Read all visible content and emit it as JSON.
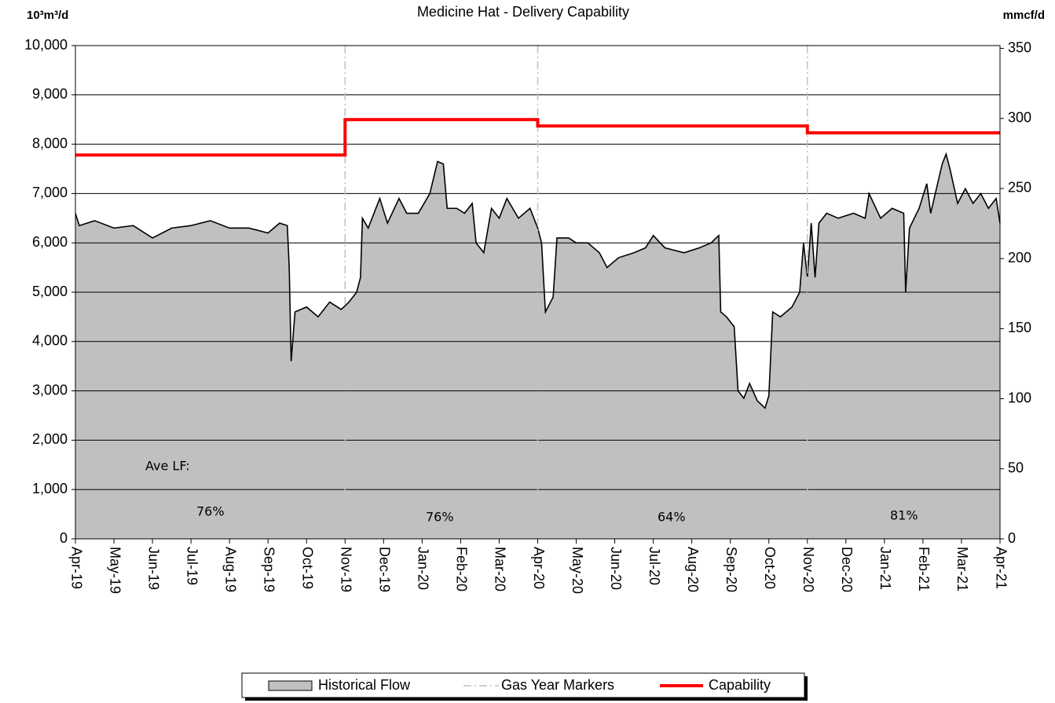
{
  "chart_data": {
    "type": "line",
    "title": "Medicine Hat - Delivery Capability",
    "y_label": "10³m³/d",
    "y2_label": "mmcf/d",
    "xlim": [
      0,
      24
    ],
    "xticks": [
      {
        "value": 0,
        "label": "Apr-19"
      },
      {
        "value": 1,
        "label": "May-19"
      },
      {
        "value": 2,
        "label": "Jun-19"
      },
      {
        "value": 3,
        "label": "Jul-19"
      },
      {
        "value": 4,
        "label": "Aug-19"
      },
      {
        "value": 5,
        "label": "Sep-19"
      },
      {
        "value": 6,
        "label": "Oct-19"
      },
      {
        "value": 7,
        "label": "Nov-19"
      },
      {
        "value": 8,
        "label": "Dec-19"
      },
      {
        "value": 9,
        "label": "Jan-20"
      },
      {
        "value": 10,
        "label": "Feb-20"
      },
      {
        "value": 11,
        "label": "Mar-20"
      },
      {
        "value": 12,
        "label": "Apr-20"
      },
      {
        "value": 13,
        "label": "May-20"
      },
      {
        "value": 14,
        "label": "Jun-20"
      },
      {
        "value": 15,
        "label": "Jul-20"
      },
      {
        "value": 16,
        "label": "Aug-20"
      },
      {
        "value": 17,
        "label": "Sep-20"
      },
      {
        "value": 18,
        "label": "Oct-20"
      },
      {
        "value": 19,
        "label": "Nov-20"
      },
      {
        "value": 20,
        "label": "Dec-20"
      },
      {
        "value": 21,
        "label": "Jan-21"
      },
      {
        "value": 22,
        "label": "Feb-21"
      },
      {
        "value": 23,
        "label": "Mar-21"
      },
      {
        "value": 24,
        "label": "Apr-21"
      }
    ],
    "ylim": [
      0,
      10000
    ],
    "yticks": [
      0,
      {
        "value": 1000,
        "label": "1,000"
      },
      {
        "value": 2000,
        "label": "2,000"
      },
      {
        "value": 3000,
        "label": "3,000"
      },
      {
        "value": 4000,
        "label": "4,000"
      },
      {
        "value": 5000,
        "label": "5,000"
      },
      {
        "value": 6000,
        "label": "6,000"
      },
      {
        "value": 7000,
        "label": "7,000"
      },
      {
        "value": 8000,
        "label": "8,000"
      },
      {
        "value": 9000,
        "label": "9,000"
      },
      {
        "value": 10000,
        "label": "10,000"
      }
    ],
    "y2lim": [
      0,
      352
    ],
    "y2ticks": [
      0,
      50,
      100,
      150,
      200,
      250,
      300,
      350
    ],
    "grid": true,
    "legend": "bottom",
    "series": [
      {
        "name": "Historical Flow",
        "style": "area",
        "color": "#c0c0c0",
        "line_color": "#000000",
        "x": [
          0,
          0.1,
          0.5,
          1,
          1.5,
          2,
          2.5,
          3,
          3.5,
          4,
          4.5,
          5,
          5.3,
          5.5,
          5.55,
          5.6,
          5.7,
          6,
          6.3,
          6.6,
          6.9,
          7.1,
          7.3,
          7.4,
          7.45,
          7.6,
          7.9,
          8.1,
          8.4,
          8.6,
          8.9,
          9.2,
          9.4,
          9.55,
          9.65,
          9.9,
          10.1,
          10.3,
          10.4,
          10.6,
          10.8,
          11,
          11.2,
          11.5,
          11.8,
          12,
          12.1,
          12.2,
          12.4,
          12.5,
          12.8,
          13,
          13.3,
          13.6,
          13.8,
          14.1,
          14.5,
          14.8,
          15,
          15.3,
          15.8,
          16.2,
          16.5,
          16.7,
          16.75,
          16.9,
          17.1,
          17.2,
          17.35,
          17.5,
          17.7,
          17.9,
          18,
          18.1,
          18.3,
          18.6,
          18.8,
          18.9,
          19,
          19.1,
          19.2,
          19.3,
          19.5,
          19.8,
          20.2,
          20.5,
          20.6,
          20.9,
          21.2,
          21.5,
          21.55,
          21.65,
          21.9,
          22.1,
          22.2,
          22.35,
          22.5,
          22.6,
          22.7,
          22.9,
          23.1,
          23.3,
          23.5,
          23.7,
          23.9,
          24
        ],
        "values": [
          6600,
          6350,
          6450,
          6300,
          6350,
          6100,
          6300,
          6350,
          6450,
          6300,
          6300,
          6200,
          6400,
          6350,
          5500,
          3600,
          4600,
          4700,
          4500,
          4800,
          4650,
          4800,
          5000,
          5300,
          6500,
          6300,
          6900,
          6400,
          6900,
          6600,
          6600,
          7000,
          7650,
          7600,
          6700,
          6700,
          6600,
          6800,
          6000,
          5800,
          6700,
          6500,
          6900,
          6500,
          6700,
          6300,
          6000,
          4600,
          4900,
          6100,
          6100,
          6000,
          6000,
          5800,
          5500,
          5700,
          5800,
          5900,
          6150,
          5900,
          5800,
          5900,
          6000,
          6150,
          4600,
          4500,
          4300,
          3000,
          2850,
          3150,
          2800,
          2650,
          2900,
          4600,
          4500,
          4700,
          5000,
          6000,
          5300,
          6400,
          5300,
          6400,
          6600,
          6500,
          6600,
          6500,
          7000,
          6500,
          6700,
          6600,
          5000,
          6300,
          6700,
          7200,
          6600,
          7100,
          7600,
          7800,
          7500,
          6800,
          7100,
          6800,
          7000,
          6700,
          6900,
          6400
        ]
      },
      {
        "name": "Gas Year Markers",
        "style": "markers",
        "color": "#c0c0c0",
        "x": [
          7,
          12,
          19
        ]
      },
      {
        "name": "Capability",
        "style": "line",
        "color": "#ff0000",
        "x": [
          0,
          7,
          7,
          12,
          12,
          19,
          19,
          24
        ],
        "values": [
          7780,
          7780,
          8500,
          8500,
          8370,
          8370,
          8230,
          8230
        ]
      }
    ],
    "annotations": [
      "Ave LF:",
      "76%",
      "76%",
      "64%",
      "81%"
    ]
  }
}
